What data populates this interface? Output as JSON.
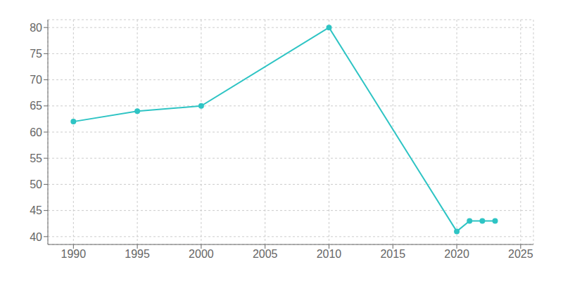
{
  "chart_data": {
    "type": "line",
    "x": [
      1990,
      1995,
      2000,
      2010,
      2020,
      2021,
      2022,
      2023
    ],
    "values": [
      62,
      64,
      65,
      80,
      41,
      43,
      43,
      43
    ],
    "color": "#2ec4c4",
    "xlim": [
      1988,
      2026
    ],
    "ylim": [
      38.5,
      81.5
    ],
    "xticks": [
      1990,
      1995,
      2000,
      2005,
      2010,
      2015,
      2020,
      2025
    ],
    "yticks": [
      40,
      45,
      50,
      55,
      60,
      65,
      70,
      75,
      80
    ],
    "grid": true,
    "marker": "circle"
  }
}
